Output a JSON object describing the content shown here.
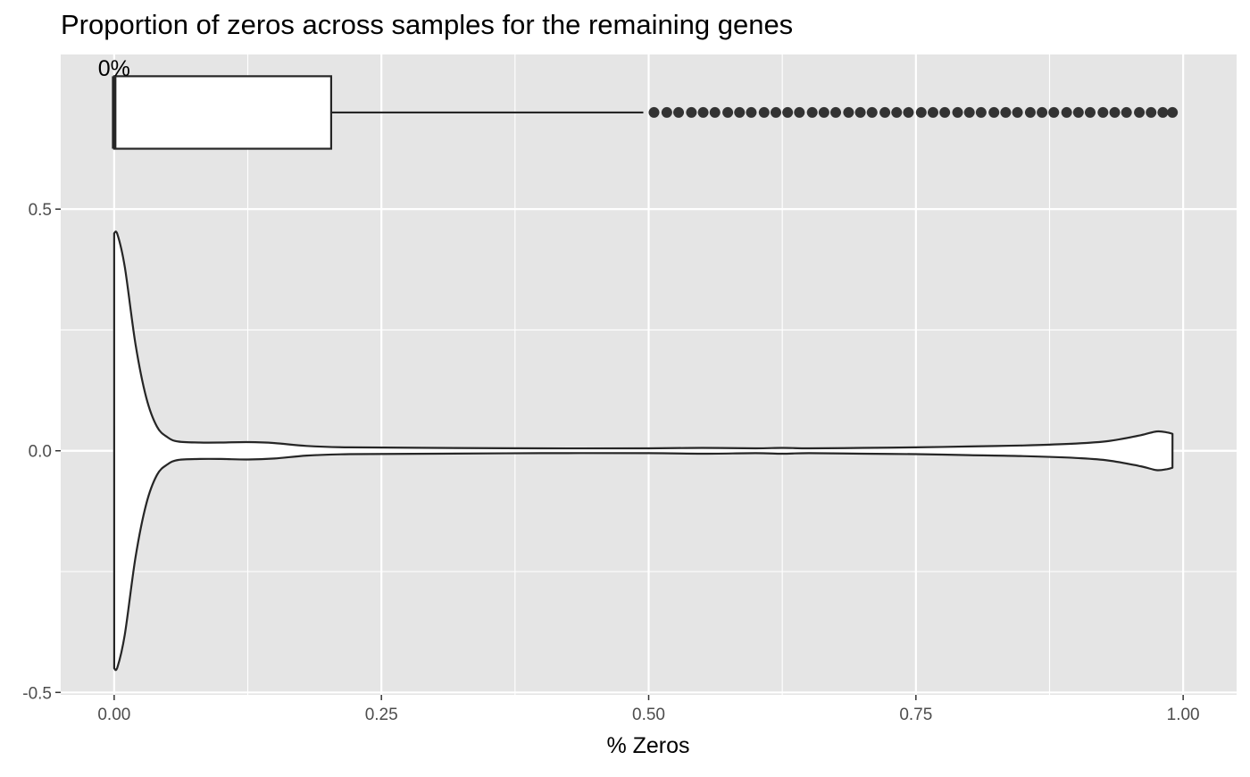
{
  "chart_data": {
    "type": "violin+boxplot",
    "title": "Proportion of zeros across samples for the remaining genes",
    "xlabel": "% Zeros",
    "ylabel": "",
    "xlim": [
      -0.05,
      1.05
    ],
    "ylim": [
      -0.505,
      0.82
    ],
    "x_ticks": [
      0.0,
      0.25,
      0.5,
      0.75,
      1.0
    ],
    "x_tick_labels": [
      "0.00",
      "0.25",
      "0.50",
      "0.75",
      "1.00"
    ],
    "y_ticks": [
      -0.5,
      0.0,
      0.5
    ],
    "y_tick_labels": [
      "-0.5",
      "0.0",
      "0.5"
    ],
    "grid": true,
    "panel_background": "#e5e5e5",
    "grid_color": "#ffffff",
    "line_color": "#262626",
    "annotation": {
      "text": "0%",
      "x": 0.0,
      "y": 0.79
    },
    "boxplot": {
      "y_center": 0.7,
      "y_half_height": 0.075,
      "min": 0.0,
      "q1": 0.0,
      "median": 0.0,
      "q3": 0.203,
      "whisker_high": 0.495,
      "outliers": [
        0.505,
        0.517,
        0.528,
        0.54,
        0.551,
        0.562,
        0.574,
        0.585,
        0.596,
        0.608,
        0.619,
        0.63,
        0.641,
        0.653,
        0.664,
        0.675,
        0.687,
        0.698,
        0.709,
        0.721,
        0.732,
        0.743,
        0.755,
        0.766,
        0.777,
        0.789,
        0.8,
        0.811,
        0.823,
        0.834,
        0.845,
        0.857,
        0.868,
        0.879,
        0.891,
        0.902,
        0.913,
        0.925,
        0.936,
        0.947,
        0.959,
        0.97,
        0.981,
        0.99
      ]
    },
    "violin": {
      "y_center": 0.0,
      "x": [
        0.0,
        0.003,
        0.01,
        0.02,
        0.03,
        0.04,
        0.05,
        0.06,
        0.08,
        0.1,
        0.125,
        0.15,
        0.18,
        0.22,
        0.3,
        0.4,
        0.5,
        0.55,
        0.6,
        0.625,
        0.65,
        0.7,
        0.75,
        0.8,
        0.85,
        0.9,
        0.93,
        0.96,
        0.975,
        0.985,
        0.99
      ],
      "half_width": [
        0.45,
        0.448,
        0.38,
        0.22,
        0.11,
        0.05,
        0.028,
        0.019,
        0.017,
        0.017,
        0.018,
        0.016,
        0.01,
        0.007,
        0.006,
        0.005,
        0.005,
        0.006,
        0.005,
        0.006,
        0.005,
        0.006,
        0.007,
        0.009,
        0.011,
        0.015,
        0.02,
        0.032,
        0.04,
        0.038,
        0.035
      ]
    }
  }
}
